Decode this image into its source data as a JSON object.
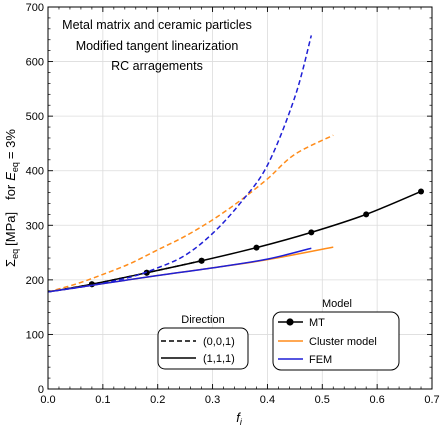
{
  "chart_data": {
    "type": "line",
    "annotation_lines": [
      "Metal matrix and ceramic particles",
      "Modified tangent  linearization",
      "RC  arragements"
    ],
    "xlabel": "f",
    "xlabel_sub": "i",
    "ylabel_parts": {
      "sigma": "Σ",
      "sigma_sub": "eq",
      "units": "[MPa]",
      "for": "for",
      "E": "E",
      "E_sub": "eq",
      "eq_value": "= 3%"
    },
    "xlim": [
      0.0,
      0.7
    ],
    "ylim": [
      0,
      700
    ],
    "xticks": [
      "0.0",
      "0.1",
      "0.2",
      "0.3",
      "0.4",
      "0.5",
      "0.6",
      "0.7"
    ],
    "yticks": [
      "0",
      "100",
      "200",
      "300",
      "400",
      "500",
      "600",
      "700"
    ],
    "grid": true,
    "legend_direction": {
      "title": "Direction",
      "placement": "bottom-center",
      "entries": [
        {
          "label": "(0,0,1)",
          "dash": "dashed"
        },
        {
          "label": "(1,1,1)",
          "dash": "solid"
        }
      ]
    },
    "legend_model": {
      "title": "Model",
      "placement": "bottom-right",
      "entries": [
        {
          "label": "MT",
          "color": "#000000",
          "marker": true
        },
        {
          "label": "Cluster model",
          "color": "#ff8c1a",
          "marker": false
        },
        {
          "label": "FEM",
          "color": "#1f1fd6",
          "marker": false
        }
      ]
    },
    "series": [
      {
        "model": "MT",
        "direction": "(1,1,1)",
        "color": "#000000",
        "dash": "solid",
        "markers": true,
        "x": [
          0.0,
          0.08,
          0.18,
          0.28,
          0.38,
          0.48,
          0.58,
          0.68
        ],
        "y": [
          178,
          192,
          213,
          235,
          259,
          287,
          320,
          362
        ]
      },
      {
        "model": "MT",
        "direction": "(0,0,1)",
        "color": "#000000",
        "dash": "dashed",
        "markers": true,
        "x": [
          0.0,
          0.08,
          0.18,
          0.28
        ],
        "y": [
          178,
          192,
          213,
          235
        ]
      },
      {
        "model": "Cluster model",
        "direction": "(0,0,1)",
        "color": "#ff8c1a",
        "dash": "dashed",
        "markers": false,
        "x": [
          0.0,
          0.05,
          0.1,
          0.15,
          0.2,
          0.25,
          0.3,
          0.35,
          0.4,
          0.45,
          0.52
        ],
        "y": [
          178,
          192,
          210,
          230,
          255,
          280,
          310,
          345,
          385,
          430,
          465
        ]
      },
      {
        "model": "Cluster model",
        "direction": "(1,1,1)",
        "color": "#ff8c1a",
        "dash": "solid",
        "markers": false,
        "x": [
          0.0,
          0.1,
          0.2,
          0.3,
          0.4,
          0.52
        ],
        "y": [
          178,
          193,
          208,
          222,
          237,
          260
        ]
      },
      {
        "model": "FEM",
        "direction": "(0,0,1)",
        "color": "#1f1fd6",
        "dash": "dashed",
        "markers": false,
        "x": [
          0.0,
          0.08,
          0.15,
          0.2,
          0.25,
          0.3,
          0.35,
          0.4,
          0.45,
          0.48
        ],
        "y": [
          178,
          190,
          205,
          222,
          245,
          285,
          340,
          410,
          535,
          648
        ]
      },
      {
        "model": "FEM",
        "direction": "(1,1,1)",
        "color": "#1f1fd6",
        "dash": "solid",
        "markers": false,
        "x": [
          0.0,
          0.1,
          0.2,
          0.3,
          0.4,
          0.48
        ],
        "y": [
          178,
          193,
          208,
          222,
          238,
          258
        ]
      }
    ]
  }
}
